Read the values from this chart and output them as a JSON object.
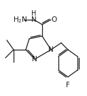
{
  "bg_color": "#ffffff",
  "line_color": "#1a1a1a",
  "figsize": [
    1.28,
    1.41
  ],
  "dpi": 100,
  "xlim": [
    0,
    128
  ],
  "ylim": [
    0,
    141
  ]
}
